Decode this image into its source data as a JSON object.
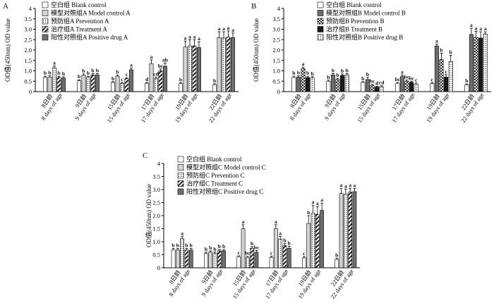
{
  "chart_data": [
    {
      "type": "bar",
      "panel": "A",
      "ylabel": "OD值(450nm) OD value",
      "ylim": [
        0,
        4
      ],
      "yticks": [
        "0",
        "0.5",
        "1.0",
        "1.5",
        "2.0",
        "2.5",
        "3.0",
        "3.5",
        "4"
      ],
      "categories": [
        {
          "cn": "8日龄",
          "en": "8 days of age"
        },
        {
          "cn": "9日龄",
          "en": "9 days of age"
        },
        {
          "cn": "15日龄",
          "en": "15 days of age"
        },
        {
          "cn": "17日龄",
          "en": "17 days of age"
        },
        {
          "cn": "19日龄",
          "en": "19 days of age"
        },
        {
          "cn": "22日龄",
          "en": "22 days of age"
        }
      ],
      "series": [
        {
          "name": "空白组 Blank control",
          "pattern": "blank",
          "values": [
            0.68,
            0.52,
            0.44,
            0.4,
            0.38,
            0.33
          ],
          "errors": [
            0.06,
            0.05,
            0.04,
            0.04,
            0.05,
            0.05
          ],
          "labels": [
            "b",
            "b",
            "b",
            "d",
            "b",
            "b"
          ]
        },
        {
          "name": "模型对照组A Model control A",
          "pattern": "lightgray",
          "values": [
            0.7,
            0.78,
            0.74,
            1.35,
            2.15,
            2.6
          ],
          "errors": [
            0.06,
            0.07,
            0.06,
            0.18,
            0.28,
            0.28
          ],
          "labels": [
            "b",
            "b",
            "b",
            "a",
            "a",
            "a"
          ]
        },
        {
          "name": "预防组A Prevention A",
          "pattern": "dots",
          "values": [
            1.15,
            0.68,
            0.4,
            0.62,
            2.2,
            2.58
          ],
          "errors": [
            0.08,
            0.06,
            0.04,
            0.07,
            0.3,
            0.3
          ],
          "labels": [
            "a",
            "b",
            "c",
            "cd",
            "a",
            "a"
          ]
        },
        {
          "name": "治疗组A Treatment A",
          "pattern": "diag",
          "values": [
            0.68,
            0.8,
            0.62,
            1.0,
            2.2,
            2.62
          ],
          "errors": [
            0.06,
            0.07,
            0.05,
            0.09,
            0.3,
            0.3
          ],
          "labels": [
            "b",
            "b",
            "c",
            "bc",
            "a",
            "a"
          ]
        },
        {
          "name": "阳性对照组A Positive drug A",
          "pattern": "darkgray",
          "values": [
            0.65,
            0.8,
            1.05,
            1.22,
            2.12,
            2.6
          ],
          "errors": [
            0.06,
            0.07,
            0.08,
            0.15,
            0.28,
            0.22
          ],
          "labels": [
            "b",
            "b",
            "a",
            "ab",
            "a",
            "a"
          ]
        }
      ]
    },
    {
      "type": "bar",
      "panel": "B",
      "ylabel": "OD值(450nm) OD value",
      "ylim": [
        0,
        4
      ],
      "yticks": [
        "0",
        "0.5",
        "1.0",
        "1.5",
        "2.0",
        "2.5",
        "3.0",
        "3.5",
        "4"
      ],
      "categories": [
        {
          "cn": "8日龄",
          "en": "8 days of age"
        },
        {
          "cn": "9日龄",
          "en": "9 days of age"
        },
        {
          "cn": "15日龄",
          "en": "15 days of age"
        },
        {
          "cn": "17日龄",
          "en": "17 days of age"
        },
        {
          "cn": "19日龄",
          "en": "19 days of age"
        },
        {
          "cn": "22日龄",
          "en": "22 days of age"
        }
      ],
      "series": [
        {
          "name": "空白组 Blank control",
          "pattern": "blank",
          "values": [
            0.68,
            0.5,
            0.44,
            0.4,
            0.38,
            0.32
          ],
          "errors": [
            0.06,
            0.05,
            0.04,
            0.04,
            0.05,
            0.05
          ],
          "labels": [
            "b",
            "b",
            "b",
            "bc",
            "c",
            "b"
          ]
        },
        {
          "name": "模型对照组B Model control B",
          "pattern": "darkgray",
          "values": [
            0.7,
            0.8,
            0.58,
            0.72,
            2.2,
            2.75
          ],
          "errors": [
            0.06,
            0.07,
            0.1,
            0.08,
            0.08,
            0.3
          ],
          "labels": [
            "b",
            "b",
            "b",
            "a",
            "a",
            "a"
          ]
        },
        {
          "name": "预防组B Prevention B",
          "pattern": "checker",
          "values": [
            1.1,
            0.58,
            0.3,
            0.5,
            1.55,
            2.6
          ],
          "errors": [
            0.08,
            0.06,
            0.05,
            0.06,
            0.3,
            0.3
          ],
          "labels": [
            "a",
            "b",
            "bc",
            "bc",
            "b",
            "a"
          ]
        },
        {
          "name": "治疗组B Treatment B",
          "pattern": "black",
          "values": [
            0.68,
            0.78,
            0.22,
            0.45,
            0.7,
            2.58
          ],
          "errors": [
            0.06,
            0.07,
            0.04,
            0.05,
            0.12,
            0.3
          ],
          "labels": [
            "b",
            "b",
            "d",
            "bc",
            "c",
            "a"
          ]
        },
        {
          "name": "阳性对照组B Positive drug B",
          "pattern": "dots",
          "values": [
            0.66,
            0.8,
            0.24,
            0.36,
            1.45,
            2.78
          ],
          "errors": [
            0.06,
            0.07,
            0.04,
            0.05,
            0.3,
            0.1
          ],
          "labels": [
            "b",
            "b",
            "cd",
            "c",
            "b",
            "a"
          ]
        }
      ]
    },
    {
      "type": "bar",
      "panel": "C",
      "ylabel": "OD值(450nm) OD value",
      "ylim": [
        0,
        4
      ],
      "yticks": [
        "0",
        "0.5",
        "1.0",
        "1.5",
        "2.0",
        "2.5",
        "3.0",
        "3.5",
        "4"
      ],
      "categories": [
        {
          "cn": "8日龄",
          "en": "8 days of age"
        },
        {
          "cn": "9日龄",
          "en": "9 days of age"
        },
        {
          "cn": "15日龄",
          "en": "15 days of age"
        },
        {
          "cn": "17日龄",
          "en": "17 days of age"
        },
        {
          "cn": "19日龄",
          "en": "19 days of age"
        },
        {
          "cn": "22日龄",
          "en": "22 days of age"
        }
      ],
      "series": [
        {
          "name": "空白组 Blank control",
          "pattern": "blank",
          "values": [
            0.68,
            0.55,
            0.42,
            0.4,
            0.38,
            0.32
          ],
          "errors": [
            0.06,
            0.05,
            0.04,
            0.04,
            0.05,
            0.05
          ],
          "labels": [
            "b",
            "b",
            "c",
            "c",
            "c",
            "b"
          ]
        },
        {
          "name": "模型对照组C Model control C",
          "pattern": "lightgray",
          "values": [
            0.68,
            0.6,
            1.5,
            1.5,
            1.7,
            2.85
          ],
          "errors": [
            0.06,
            0.05,
            0.15,
            0.15,
            0.3,
            0.2
          ],
          "labels": [
            "b",
            "b",
            "a",
            "a",
            "b",
            "a"
          ]
        },
        {
          "name": "预防组C Prevention C",
          "pattern": "dots",
          "values": [
            1.12,
            0.55,
            0.4,
            1.1,
            2.1,
            2.82
          ],
          "errors": [
            0.08,
            0.05,
            0.04,
            0.1,
            0.3,
            0.2
          ],
          "labels": [
            "a",
            "b",
            "bc",
            "a",
            "a",
            "a"
          ]
        },
        {
          "name": "治疗组C Treatment C",
          "pattern": "diag",
          "values": [
            0.68,
            0.65,
            0.75,
            0.85,
            2.05,
            2.9
          ],
          "errors": [
            0.06,
            0.05,
            0.06,
            0.08,
            0.3,
            0.15
          ],
          "labels": [
            "b",
            "b",
            "b",
            "b",
            "a",
            "a"
          ]
        },
        {
          "name": "阳性对照组C Positive drug C",
          "pattern": "darkgray",
          "values": [
            0.68,
            0.65,
            0.6,
            0.75,
            2.2,
            2.92
          ],
          "errors": [
            0.06,
            0.05,
            0.06,
            0.08,
            0.28,
            0.12
          ],
          "labels": [
            "b",
            "b",
            "bc",
            "b",
            "a",
            "a"
          ]
        }
      ]
    }
  ]
}
